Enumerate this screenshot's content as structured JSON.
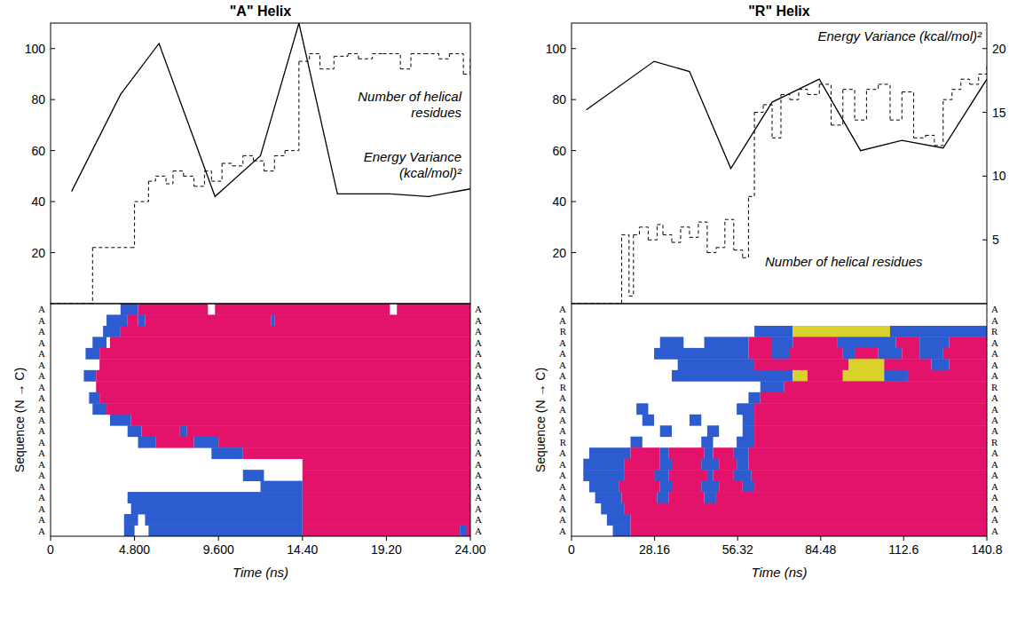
{
  "chart_data": [
    {
      "type": "line",
      "title": "\"A\" Helix",
      "x_label": "Time (ns)",
      "y_label": "Sequence (N → C)",
      "xlim": [
        0,
        24
      ],
      "xticks": [
        0,
        {
          "value": 4.8,
          "label": "4.800"
        },
        {
          "value": 9.6,
          "label": "9.600"
        },
        {
          "value": 14.4,
          "label": "14.40"
        },
        {
          "value": 19.2,
          "label": "19.20"
        },
        {
          "value": 24,
          "label": "24.00"
        }
      ],
      "ylim": [
        0,
        110
      ],
      "yticks": [
        20,
        40,
        60,
        80,
        100
      ],
      "series": [
        {
          "name": "Energy Variance (kcal/mol)²",
          "type": "line",
          "color": "#000000",
          "line_style": "solid",
          "x": [
            1.2,
            4.0,
            6.2,
            9.4,
            12.0,
            14.2,
            16.4,
            19.4,
            21.6,
            24.0
          ],
          "values": [
            44,
            82,
            102,
            42,
            58,
            110,
            43,
            43,
            42,
            45
          ]
        },
        {
          "name": "Number of helical residues",
          "type": "step",
          "color": "#000000",
          "line_style": "dashed",
          "x": [
            0,
            2.2,
            2.4,
            4.6,
            4.8,
            5.6,
            6.0,
            6.6,
            7.0,
            7.6,
            8.2,
            8.8,
            9.2,
            9.8,
            10.4,
            11.0,
            11.6,
            12.2,
            12.8,
            13.4,
            14.2,
            14.8,
            15.4,
            16.2,
            17.0,
            17.6,
            18.4,
            19.0,
            20.0,
            20.6,
            21.4,
            22.2,
            22.8,
            23.6,
            24.0
          ],
          "values": [
            0,
            0,
            22,
            22,
            40,
            48,
            50,
            47,
            52,
            50,
            46,
            52,
            48,
            55,
            54,
            58,
            56,
            52,
            58,
            60,
            95,
            98,
            92,
            97,
            98,
            96,
            98,
            98,
            92,
            98,
            98,
            96,
            98,
            90,
            97
          ]
        }
      ],
      "sequence": [
        "A",
        "A",
        "A",
        "A",
        "A",
        "A",
        "A",
        "A",
        "A",
        "A",
        "A",
        "A",
        "A",
        "A",
        "A",
        "A",
        "A",
        "A",
        "A",
        "A",
        "A"
      ],
      "heatmap": {
        "colors": [
          "#2c5ccf",
          "#e3126b",
          "#d8d22a"
        ],
        "cells": [
          [
            [
              4.0,
              5.0,
              0
            ],
            [
              5.0,
              9.0,
              1
            ],
            [
              9.4,
              19.4,
              1
            ],
            [
              19.8,
              24,
              1
            ]
          ],
          [
            [
              3.2,
              4.4,
              0
            ],
            [
              4.4,
              5.0,
              1
            ],
            [
              5.0,
              5.4,
              0
            ],
            [
              5.4,
              12.6,
              1
            ],
            [
              12.6,
              12.8,
              0
            ],
            [
              12.8,
              24,
              1
            ]
          ],
          [
            [
              3.0,
              4.0,
              0
            ],
            [
              4.0,
              24,
              1
            ]
          ],
          [
            [
              2.4,
              3.2,
              0
            ],
            [
              3.4,
              24,
              1
            ]
          ],
          [
            [
              2.0,
              2.8,
              0
            ],
            [
              2.8,
              24,
              1
            ]
          ],
          [
            [
              2.8,
              24,
              1
            ]
          ],
          [
            [
              1.9,
              2.6,
              0
            ],
            [
              2.6,
              24,
              1
            ]
          ],
          [
            [
              2.6,
              24,
              1
            ]
          ],
          [
            [
              2.2,
              2.8,
              0
            ],
            [
              2.8,
              24,
              1
            ]
          ],
          [
            [
              2.4,
              3.2,
              0
            ],
            [
              3.2,
              24,
              1
            ]
          ],
          [
            [
              3.4,
              4.6,
              0
            ],
            [
              4.6,
              24,
              1
            ]
          ],
          [
            [
              4.4,
              5.2,
              0
            ],
            [
              5.2,
              7.4,
              1
            ],
            [
              7.4,
              7.8,
              0
            ],
            [
              7.8,
              24,
              1
            ]
          ],
          [
            [
              5.0,
              6.0,
              0
            ],
            [
              6.0,
              8.2,
              1
            ],
            [
              8.2,
              9.6,
              0
            ],
            [
              9.6,
              24,
              1
            ]
          ],
          [
            [
              9.2,
              11.0,
              0
            ],
            [
              11.0,
              24,
              1
            ]
          ],
          [
            [
              14.4,
              24,
              1
            ]
          ],
          [
            [
              11.0,
              12.2,
              0
            ],
            [
              14.4,
              24,
              1
            ]
          ],
          [
            [
              12.0,
              14.4,
              0
            ],
            [
              14.4,
              24,
              1
            ]
          ],
          [
            [
              4.4,
              14.4,
              0
            ],
            [
              14.4,
              24,
              1
            ]
          ],
          [
            [
              4.6,
              14.4,
              0
            ],
            [
              14.4,
              24,
              1
            ]
          ],
          [
            [
              4.2,
              5.0,
              0
            ],
            [
              5.4,
              14.4,
              0
            ],
            [
              14.4,
              24,
              1
            ]
          ],
          [
            [
              4.2,
              4.8,
              0
            ],
            [
              5.6,
              14.4,
              0
            ],
            [
              14.4,
              23.4,
              1
            ],
            [
              23.4,
              23.8,
              0
            ],
            [
              23.8,
              24,
              1
            ]
          ]
        ]
      }
    },
    {
      "type": "line",
      "title": "\"R\" Helix",
      "x_label": "Time (ns)",
      "y_label": "Sequence (N → C)",
      "xlim": [
        0,
        140.8
      ],
      "xticks": [
        0,
        28.16,
        56.32,
        84.48,
        112.6,
        140.8
      ],
      "ylim": [
        0,
        110
      ],
      "yticks": [
        20,
        40,
        60,
        80,
        100
      ],
      "y2lim": [
        0,
        22
      ],
      "y2ticks": [
        5,
        10,
        15,
        20
      ],
      "series": [
        {
          "name": "Energy Variance (kcal/mol)²",
          "type": "line",
          "axis": "y2",
          "color": "#000000",
          "line_style": "solid",
          "x": [
            5,
            28,
            40,
            54,
            68,
            84,
            98,
            112,
            126,
            140.8
          ],
          "values": [
            15.2,
            19.0,
            18.2,
            10.6,
            15.8,
            17.6,
            12.0,
            12.8,
            12.2,
            17.6
          ]
        },
        {
          "name": "Number of helical residues",
          "type": "step",
          "color": "#000000",
          "line_style": "dashed",
          "x": [
            0,
            15,
            17,
            19.5,
            21,
            23,
            26,
            29,
            31,
            34,
            37,
            40,
            43,
            46,
            49,
            52,
            55,
            58,
            60,
            62,
            65,
            68,
            71,
            74,
            77,
            80,
            84,
            88,
            92,
            96,
            100,
            104,
            108,
            112,
            116,
            120,
            123,
            126,
            129,
            132,
            135,
            138,
            140.8
          ],
          "values": [
            0,
            0,
            27,
            3,
            27,
            30,
            25,
            31,
            27,
            24,
            30,
            26,
            32,
            20,
            22,
            33,
            21,
            18,
            42,
            75,
            78,
            65,
            82,
            80,
            84,
            82,
            86,
            70,
            84,
            72,
            84,
            86,
            72,
            83,
            65,
            66,
            62,
            80,
            84,
            88,
            86,
            90,
            94
          ]
        }
      ],
      "sequence": [
        "A",
        "A",
        "R",
        "A",
        "A",
        "A",
        "A",
        "R",
        "A",
        "A",
        "A",
        "A",
        "R",
        "A",
        "A",
        "A",
        "A",
        "A",
        "A",
        "A",
        "A"
      ],
      "heatmap": {
        "colors": [
          "#2c5ccf",
          "#e3126b",
          "#d8d22a"
        ],
        "cells": [
          [],
          [],
          [
            [
              62,
              75,
              0
            ],
            [
              75,
              108,
              2
            ],
            [
              108,
              140.8,
              0
            ]
          ],
          [
            [
              30,
              38,
              0
            ],
            [
              45,
              60,
              0
            ],
            [
              60,
              68,
              1
            ],
            [
              68,
              75,
              0
            ],
            [
              75,
              90,
              1
            ],
            [
              90,
              110,
              0
            ],
            [
              110,
              118,
              1
            ],
            [
              118,
              128,
              0
            ],
            [
              128,
              140.8,
              1
            ]
          ],
          [
            [
              28,
              60,
              0
            ],
            [
              60,
              68,
              1
            ],
            [
              68,
              74,
              0
            ],
            [
              74,
              92,
              1
            ],
            [
              92,
              96,
              0
            ],
            [
              96,
              104,
              1
            ],
            [
              104,
              112,
              0
            ],
            [
              112,
              118,
              1
            ],
            [
              118,
              126,
              0
            ],
            [
              126,
              140.8,
              1
            ]
          ],
          [
            [
              36,
              62,
              0
            ],
            [
              62,
              94,
              1
            ],
            [
              94,
              106,
              2
            ],
            [
              106,
              122,
              1
            ],
            [
              122,
              128,
              0
            ],
            [
              128,
              140.8,
              1
            ]
          ],
          [
            [
              34,
              75,
              0
            ],
            [
              75,
              80,
              2
            ],
            [
              80,
              92,
              1
            ],
            [
              92,
              106,
              2
            ],
            [
              106,
              114,
              0
            ],
            [
              114,
              140.8,
              1
            ]
          ],
          [
            [
              64,
              72,
              0
            ],
            [
              72,
              140.8,
              1
            ]
          ],
          [
            [
              60,
              64,
              0
            ],
            [
              64,
              140.8,
              1
            ]
          ],
          [
            [
              22,
              26,
              0
            ],
            [
              56,
              62,
              0
            ],
            [
              62,
              140.8,
              1
            ]
          ],
          [
            [
              24,
              28,
              0
            ],
            [
              40,
              44,
              0
            ],
            [
              58,
              62,
              0
            ],
            [
              62,
              140.8,
              1
            ]
          ],
          [
            [
              30,
              34,
              0
            ],
            [
              46,
              50,
              0
            ],
            [
              58,
              62,
              0
            ],
            [
              62,
              140.8,
              1
            ]
          ],
          [
            [
              20,
              24,
              0
            ],
            [
              44,
              48,
              0
            ],
            [
              56,
              62,
              0
            ],
            [
              62,
              140.8,
              1
            ]
          ],
          [
            [
              6,
              20,
              0
            ],
            [
              20,
              30,
              1
            ],
            [
              30,
              33,
              0
            ],
            [
              33,
              45,
              1
            ],
            [
              45,
              48,
              0
            ],
            [
              48,
              55,
              1
            ],
            [
              55,
              60,
              0
            ],
            [
              60,
              140.8,
              1
            ]
          ],
          [
            [
              4,
              18,
              0
            ],
            [
              18,
              30,
              1
            ],
            [
              30,
              34,
              0
            ],
            [
              34,
              44,
              1
            ],
            [
              44,
              50,
              0
            ],
            [
              50,
              56,
              1
            ],
            [
              56,
              60,
              0
            ],
            [
              60,
              140.8,
              1
            ]
          ],
          [
            [
              4,
              18,
              0
            ],
            [
              18,
              28,
              1
            ],
            [
              28,
              33,
              0
            ],
            [
              33,
              46,
              1
            ],
            [
              46,
              48,
              0
            ],
            [
              48,
              55,
              1
            ],
            [
              55,
              61,
              0
            ],
            [
              61,
              140.8,
              1
            ]
          ],
          [
            [
              6,
              16,
              0
            ],
            [
              16,
              30,
              1
            ],
            [
              30,
              34,
              0
            ],
            [
              34,
              44,
              1
            ],
            [
              44,
              50,
              0
            ],
            [
              50,
              58,
              1
            ],
            [
              58,
              62,
              0
            ],
            [
              62,
              140.8,
              1
            ]
          ],
          [
            [
              8,
              17,
              0
            ],
            [
              17,
              29,
              1
            ],
            [
              29,
              33,
              0
            ],
            [
              33,
              45,
              1
            ],
            [
              45,
              49,
              0
            ],
            [
              49,
              140.8,
              1
            ]
          ],
          [
            [
              10,
              18,
              0
            ],
            [
              18,
              140.8,
              1
            ]
          ],
          [
            [
              12,
              20,
              0
            ],
            [
              20,
              140.8,
              1
            ]
          ],
          [
            [
              14,
              20,
              0
            ],
            [
              20,
              140.8,
              1
            ]
          ]
        ]
      }
    }
  ]
}
